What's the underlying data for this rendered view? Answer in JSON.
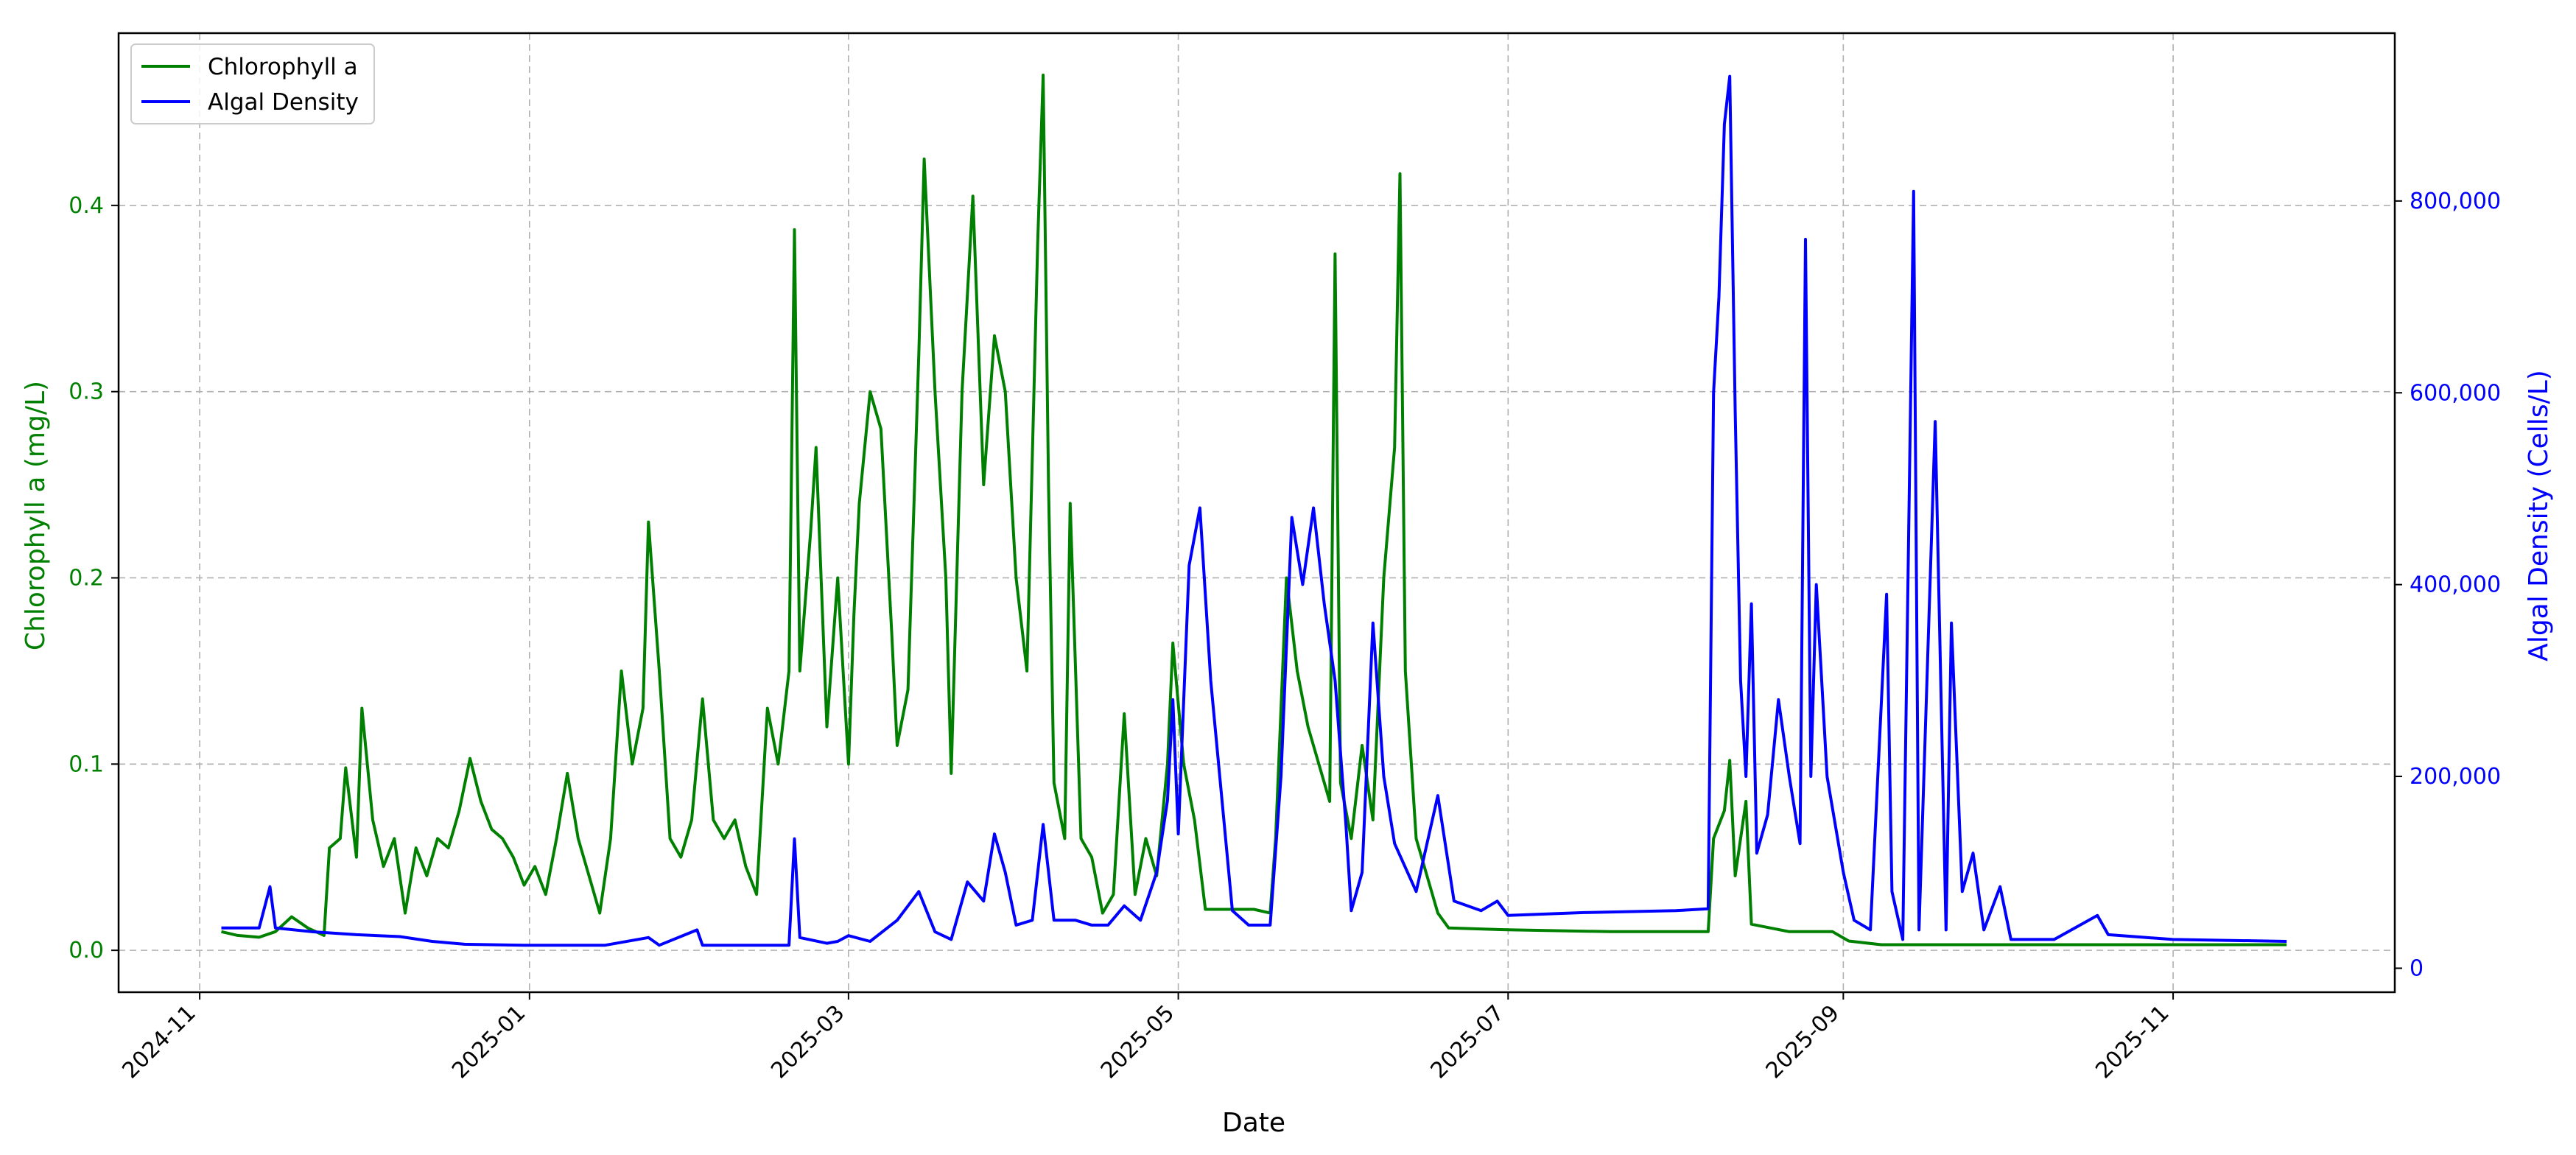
{
  "chart_data": {
    "type": "line",
    "title": "",
    "xlabel": "Date",
    "ylabel_left": "Chlorophyll a (mg/L)",
    "ylabel_right": "Algal Density (Cells/L)",
    "x_ticks": [
      "2024-11",
      "2025-01",
      "2025-03",
      "2025-05",
      "2025-07",
      "2025-09",
      "2025-11"
    ],
    "x_tick_dates": [
      "2024-11-01",
      "2025-01-01",
      "2025-03-01",
      "2025-05-01",
      "2025-07-01",
      "2025-09-01",
      "2025-11-01"
    ],
    "x_range": [
      "2024-10-17",
      "2025-12-12"
    ],
    "y_left_ticks": [
      "0.0",
      "0.1",
      "0.2",
      "0.3",
      "0.4"
    ],
    "y_left_range": [
      -0.0225,
      0.4925
    ],
    "y_right_ticks": [
      "0",
      "200,000",
      "400,000",
      "600,000",
      "800,000"
    ],
    "y_right_range": [
      -25000,
      975000
    ],
    "grid": true,
    "legend_position": "top-left",
    "colors": {
      "chlorophyll": "#008000",
      "density": "#0000ff"
    },
    "series": [
      {
        "name": "Chlorophyll a",
        "axis": "left",
        "points": [
          [
            "2024-11-05",
            0.01
          ],
          [
            "2024-11-08",
            0.008
          ],
          [
            "2024-11-12",
            0.007
          ],
          [
            "2024-11-15",
            0.01
          ],
          [
            "2024-11-18",
            0.018
          ],
          [
            "2024-11-21",
            0.012
          ],
          [
            "2024-11-24",
            0.008
          ],
          [
            "2024-11-25",
            0.055
          ],
          [
            "2024-11-27",
            0.06
          ],
          [
            "2024-11-28",
            0.098
          ],
          [
            "2024-11-30",
            0.05
          ],
          [
            "2024-12-01",
            0.13
          ],
          [
            "2024-12-03",
            0.07
          ],
          [
            "2024-12-05",
            0.045
          ],
          [
            "2024-12-07",
            0.06
          ],
          [
            "2024-12-09",
            0.02
          ],
          [
            "2024-12-11",
            0.055
          ],
          [
            "2024-12-13",
            0.04
          ],
          [
            "2024-12-15",
            0.06
          ],
          [
            "2024-12-17",
            0.055
          ],
          [
            "2024-12-19",
            0.075
          ],
          [
            "2024-12-21",
            0.103
          ],
          [
            "2024-12-23",
            0.08
          ],
          [
            "2024-12-25",
            0.065
          ],
          [
            "2024-12-27",
            0.06
          ],
          [
            "2024-12-29",
            0.05
          ],
          [
            "2024-12-31",
            0.035
          ],
          [
            "2025-01-02",
            0.045
          ],
          [
            "2025-01-04",
            0.03
          ],
          [
            "2025-01-06",
            0.06
          ],
          [
            "2025-01-08",
            0.095
          ],
          [
            "2025-01-10",
            0.06
          ],
          [
            "2025-01-12",
            0.04
          ],
          [
            "2025-01-14",
            0.02
          ],
          [
            "2025-01-16",
            0.06
          ],
          [
            "2025-01-18",
            0.15
          ],
          [
            "2025-01-20",
            0.1
          ],
          [
            "2025-01-22",
            0.13
          ],
          [
            "2025-01-23",
            0.23
          ],
          [
            "2025-01-25",
            0.15
          ],
          [
            "2025-01-27",
            0.06
          ],
          [
            "2025-01-29",
            0.05
          ],
          [
            "2025-01-31",
            0.07
          ],
          [
            "2025-02-02",
            0.135
          ],
          [
            "2025-02-04",
            0.07
          ],
          [
            "2025-02-06",
            0.06
          ],
          [
            "2025-02-08",
            0.07
          ],
          [
            "2025-02-10",
            0.045
          ],
          [
            "2025-02-12",
            0.03
          ],
          [
            "2025-02-14",
            0.13
          ],
          [
            "2025-02-16",
            0.1
          ],
          [
            "2025-02-18",
            0.15
          ],
          [
            "2025-02-19",
            0.387
          ],
          [
            "2025-02-20",
            0.15
          ],
          [
            "2025-02-22",
            0.225
          ],
          [
            "2025-02-23",
            0.27
          ],
          [
            "2025-02-25",
            0.12
          ],
          [
            "2025-02-27",
            0.2
          ],
          [
            "2025-03-01",
            0.1
          ],
          [
            "2025-03-02",
            0.18
          ],
          [
            "2025-03-03",
            0.24
          ],
          [
            "2025-03-05",
            0.3
          ],
          [
            "2025-03-07",
            0.28
          ],
          [
            "2025-03-09",
            0.17
          ],
          [
            "2025-03-10",
            0.11
          ],
          [
            "2025-03-12",
            0.14
          ],
          [
            "2025-03-14",
            0.32
          ],
          [
            "2025-03-15",
            0.425
          ],
          [
            "2025-03-17",
            0.3
          ],
          [
            "2025-03-19",
            0.2
          ],
          [
            "2025-03-20",
            0.095
          ],
          [
            "2025-03-22",
            0.3
          ],
          [
            "2025-03-24",
            0.405
          ],
          [
            "2025-03-26",
            0.25
          ],
          [
            "2025-03-28",
            0.33
          ],
          [
            "2025-03-30",
            0.3
          ],
          [
            "2025-04-01",
            0.2
          ],
          [
            "2025-04-03",
            0.15
          ],
          [
            "2025-04-05",
            0.38
          ],
          [
            "2025-04-06",
            0.47
          ],
          [
            "2025-04-07",
            0.25
          ],
          [
            "2025-04-08",
            0.09
          ],
          [
            "2025-04-10",
            0.06
          ],
          [
            "2025-04-11",
            0.24
          ],
          [
            "2025-04-13",
            0.06
          ],
          [
            "2025-04-15",
            0.05
          ],
          [
            "2025-04-17",
            0.02
          ],
          [
            "2025-04-19",
            0.03
          ],
          [
            "2025-04-21",
            0.127
          ],
          [
            "2025-04-23",
            0.03
          ],
          [
            "2025-04-25",
            0.06
          ],
          [
            "2025-04-27",
            0.04
          ],
          [
            "2025-04-29",
            0.1
          ],
          [
            "2025-04-30",
            0.165
          ],
          [
            "2025-05-02",
            0.1
          ],
          [
            "2025-05-04",
            0.07
          ],
          [
            "2025-05-06",
            0.022
          ],
          [
            "2025-05-15",
            0.022
          ],
          [
            "2025-05-18",
            0.02
          ],
          [
            "2025-05-19",
            0.06
          ],
          [
            "2025-05-21",
            0.2
          ],
          [
            "2025-05-23",
            0.15
          ],
          [
            "2025-05-25",
            0.12
          ],
          [
            "2025-05-27",
            0.1
          ],
          [
            "2025-05-29",
            0.08
          ],
          [
            "2025-05-30",
            0.374
          ],
          [
            "2025-05-31",
            0.09
          ],
          [
            "2025-06-02",
            0.06
          ],
          [
            "2025-06-04",
            0.11
          ],
          [
            "2025-06-06",
            0.07
          ],
          [
            "2025-06-08",
            0.2
          ],
          [
            "2025-06-10",
            0.27
          ],
          [
            "2025-06-11",
            0.417
          ],
          [
            "2025-06-12",
            0.15
          ],
          [
            "2025-06-14",
            0.06
          ],
          [
            "2025-06-16",
            0.04
          ],
          [
            "2025-06-18",
            0.02
          ],
          [
            "2025-06-20",
            0.012
          ],
          [
            "2025-07-01",
            0.011
          ],
          [
            "2025-07-20",
            0.01
          ],
          [
            "2025-08-07",
            0.01
          ],
          [
            "2025-08-08",
            0.06
          ],
          [
            "2025-08-10",
            0.075
          ],
          [
            "2025-08-11",
            0.102
          ],
          [
            "2025-08-12",
            0.04
          ],
          [
            "2025-08-14",
            0.08
          ],
          [
            "2025-08-15",
            0.014
          ],
          [
            "2025-08-22",
            0.01
          ],
          [
            "2025-08-30",
            0.01
          ],
          [
            "2025-09-02",
            0.005
          ],
          [
            "2025-09-08",
            0.003
          ],
          [
            "2025-09-30",
            0.003
          ],
          [
            "2025-10-05",
            0.003
          ],
          [
            "2025-11-01",
            0.003
          ],
          [
            "2025-11-22",
            0.003
          ]
        ]
      },
      {
        "name": "Algal Density",
        "axis": "right",
        "points": [
          [
            "2024-11-05",
            42000
          ],
          [
            "2024-11-12",
            42000
          ],
          [
            "2024-11-14",
            85000
          ],
          [
            "2024-11-15",
            42000
          ],
          [
            "2024-11-22",
            38000
          ],
          [
            "2024-11-30",
            35000
          ],
          [
            "2024-12-08",
            33000
          ],
          [
            "2024-12-14",
            28000
          ],
          [
            "2024-12-20",
            25000
          ],
          [
            "2024-12-31",
            24000
          ],
          [
            "2025-01-15",
            24000
          ],
          [
            "2025-01-23",
            32000
          ],
          [
            "2025-01-25",
            24000
          ],
          [
            "2025-02-01",
            40000
          ],
          [
            "2025-02-02",
            24000
          ],
          [
            "2025-02-15",
            24000
          ],
          [
            "2025-02-18",
            24000
          ],
          [
            "2025-02-19",
            135000
          ],
          [
            "2025-02-20",
            32000
          ],
          [
            "2025-02-25",
            26000
          ],
          [
            "2025-02-27",
            28000
          ],
          [
            "2025-03-01",
            34000
          ],
          [
            "2025-03-05",
            28000
          ],
          [
            "2025-03-10",
            50000
          ],
          [
            "2025-03-14",
            80000
          ],
          [
            "2025-03-17",
            38000
          ],
          [
            "2025-03-20",
            30000
          ],
          [
            "2025-03-23",
            90000
          ],
          [
            "2025-03-26",
            70000
          ],
          [
            "2025-03-28",
            140000
          ],
          [
            "2025-03-30",
            100000
          ],
          [
            "2025-04-01",
            45000
          ],
          [
            "2025-04-04",
            50000
          ],
          [
            "2025-04-06",
            150000
          ],
          [
            "2025-04-08",
            50000
          ],
          [
            "2025-04-12",
            50000
          ],
          [
            "2025-04-15",
            45000
          ],
          [
            "2025-04-18",
            45000
          ],
          [
            "2025-04-21",
            65000
          ],
          [
            "2025-04-24",
            50000
          ],
          [
            "2025-04-27",
            100000
          ],
          [
            "2025-04-29",
            175000
          ],
          [
            "2025-04-30",
            280000
          ],
          [
            "2025-05-01",
            140000
          ],
          [
            "2025-05-03",
            420000
          ],
          [
            "2025-05-05",
            480000
          ],
          [
            "2025-05-07",
            300000
          ],
          [
            "2025-05-09",
            180000
          ],
          [
            "2025-05-11",
            60000
          ],
          [
            "2025-05-14",
            45000
          ],
          [
            "2025-05-18",
            45000
          ],
          [
            "2025-05-20",
            200000
          ],
          [
            "2025-05-22",
            470000
          ],
          [
            "2025-05-24",
            400000
          ],
          [
            "2025-05-26",
            480000
          ],
          [
            "2025-05-28",
            380000
          ],
          [
            "2025-05-30",
            300000
          ],
          [
            "2025-06-01",
            150000
          ],
          [
            "2025-06-02",
            60000
          ],
          [
            "2025-06-04",
            100000
          ],
          [
            "2025-06-06",
            360000
          ],
          [
            "2025-06-08",
            200000
          ],
          [
            "2025-06-10",
            130000
          ],
          [
            "2025-06-14",
            80000
          ],
          [
            "2025-06-18",
            180000
          ],
          [
            "2025-06-21",
            70000
          ],
          [
            "2025-06-26",
            60000
          ],
          [
            "2025-06-29",
            70000
          ],
          [
            "2025-07-01",
            55000
          ],
          [
            "2025-07-15",
            58000
          ],
          [
            "2025-08-01",
            60000
          ],
          [
            "2025-08-07",
            62000
          ],
          [
            "2025-08-08",
            600000
          ],
          [
            "2025-08-09",
            700000
          ],
          [
            "2025-08-10",
            880000
          ],
          [
            "2025-08-11",
            930000
          ],
          [
            "2025-08-12",
            580000
          ],
          [
            "2025-08-13",
            300000
          ],
          [
            "2025-08-14",
            200000
          ],
          [
            "2025-08-15",
            380000
          ],
          [
            "2025-08-16",
            120000
          ],
          [
            "2025-08-18",
            160000
          ],
          [
            "2025-08-20",
            280000
          ],
          [
            "2025-08-22",
            200000
          ],
          [
            "2025-08-24",
            130000
          ],
          [
            "2025-08-25",
            760000
          ],
          [
            "2025-08-26",
            200000
          ],
          [
            "2025-08-27",
            400000
          ],
          [
            "2025-08-29",
            200000
          ],
          [
            "2025-09-01",
            100000
          ],
          [
            "2025-09-03",
            50000
          ],
          [
            "2025-09-06",
            40000
          ],
          [
            "2025-09-09",
            390000
          ],
          [
            "2025-09-10",
            80000
          ],
          [
            "2025-09-12",
            30000
          ],
          [
            "2025-09-14",
            810000
          ],
          [
            "2025-09-15",
            40000
          ],
          [
            "2025-09-18",
            570000
          ],
          [
            "2025-09-20",
            40000
          ],
          [
            "2025-09-21",
            360000
          ],
          [
            "2025-09-23",
            80000
          ],
          [
            "2025-09-25",
            120000
          ],
          [
            "2025-09-27",
            40000
          ],
          [
            "2025-09-30",
            85000
          ],
          [
            "2025-10-02",
            30000
          ],
          [
            "2025-10-10",
            30000
          ],
          [
            "2025-10-18",
            55000
          ],
          [
            "2025-10-20",
            35000
          ],
          [
            "2025-11-01",
            30000
          ],
          [
            "2025-11-22",
            28000
          ]
        ]
      }
    ]
  }
}
